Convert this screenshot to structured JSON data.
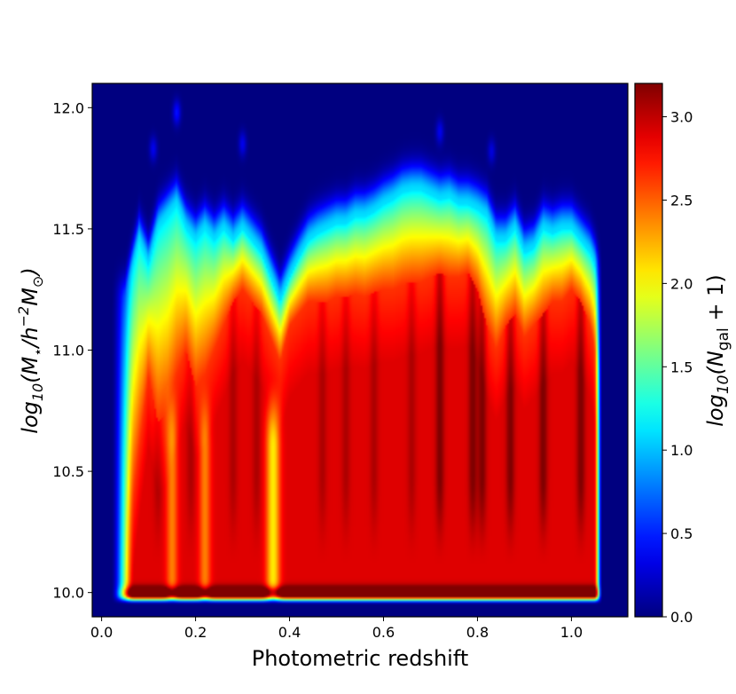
{
  "chart_data": {
    "type": "heatmap",
    "xlabel": "Photometric redshift",
    "ylabel": {
      "prefix": "log",
      "sub": "10",
      "body": "(M",
      "star": "⋆",
      "mid": "/h",
      "exp": "−2",
      "m": "M",
      "sun": "⊙",
      "close": ")"
    },
    "colorbar_label": {
      "prefix": "log",
      "sub": "10",
      "open": "(N",
      "sub2": "gal",
      "tail": " + 1)"
    },
    "xlim": [
      -0.02,
      1.12
    ],
    "ylim": [
      9.9,
      12.1
    ],
    "clim": [
      0.0,
      3.2
    ],
    "xticks": [
      "0.0",
      "0.2",
      "0.4",
      "0.6",
      "0.8",
      "1.0"
    ],
    "yticks": [
      "10.0",
      "10.5",
      "11.0",
      "11.5",
      "12.0"
    ],
    "cticks": [
      "0.0",
      "0.5",
      "1.0",
      "1.5",
      "2.0",
      "2.5",
      "3.0"
    ],
    "colormap": "jet",
    "support": {
      "z_min": 0.04,
      "z_max": 1.06,
      "mass_floor": 9.98
    },
    "upper_envelope": {
      "z": [
        0.05,
        0.08,
        0.1,
        0.12,
        0.14,
        0.16,
        0.18,
        0.2,
        0.22,
        0.24,
        0.26,
        0.28,
        0.3,
        0.32,
        0.34,
        0.36,
        0.38,
        0.4,
        0.42,
        0.44,
        0.46,
        0.48,
        0.5,
        0.52,
        0.54,
        0.56,
        0.58,
        0.6,
        0.62,
        0.64,
        0.66,
        0.68,
        0.7,
        0.72,
        0.74,
        0.76,
        0.78,
        0.8,
        0.82,
        0.84,
        0.86,
        0.88,
        0.9,
        0.92,
        0.94,
        0.96,
        0.98,
        1.0,
        1.02,
        1.04,
        1.06
      ],
      "log_mass": [
        11.2,
        11.45,
        11.35,
        11.5,
        11.55,
        11.6,
        11.5,
        11.45,
        11.5,
        11.45,
        11.5,
        11.45,
        11.5,
        11.45,
        11.4,
        11.3,
        11.2,
        11.3,
        11.38,
        11.45,
        11.48,
        11.5,
        11.52,
        11.52,
        11.55,
        11.55,
        11.57,
        11.6,
        11.62,
        11.65,
        11.66,
        11.66,
        11.64,
        11.62,
        11.63,
        11.6,
        11.6,
        11.58,
        11.55,
        11.45,
        11.45,
        11.5,
        11.4,
        11.42,
        11.5,
        11.48,
        11.5,
        11.5,
        11.45,
        11.4,
        11.3
      ]
    },
    "high_density_envelope": {
      "z": [
        0.05,
        0.08,
        0.1,
        0.12,
        0.14,
        0.16,
        0.18,
        0.2,
        0.22,
        0.24,
        0.26,
        0.28,
        0.3,
        0.32,
        0.34,
        0.36,
        0.38,
        0.4,
        0.42,
        0.44,
        0.46,
        0.48,
        0.5,
        0.52,
        0.54,
        0.56,
        0.58,
        0.6,
        0.62,
        0.64,
        0.66,
        0.68,
        0.7,
        0.72,
        0.74,
        0.76,
        0.78,
        0.8,
        0.82,
        0.84,
        0.86,
        0.88,
        0.9,
        0.92,
        0.94,
        0.96,
        0.98,
        1.0,
        1.02,
        1.04,
        1.06
      ],
      "log_mass": [
        10.1,
        10.6,
        10.9,
        10.7,
        10.75,
        10.9,
        11.0,
        10.85,
        10.9,
        11.0,
        11.1,
        11.2,
        11.25,
        11.2,
        11.15,
        11.05,
        10.95,
        11.1,
        11.15,
        11.2,
        11.2,
        11.2,
        11.22,
        11.22,
        11.23,
        11.22,
        11.24,
        11.25,
        11.25,
        11.27,
        11.28,
        11.28,
        11.3,
        11.32,
        11.3,
        11.3,
        11.32,
        11.25,
        11.1,
        11.0,
        11.1,
        11.15,
        11.05,
        11.1,
        11.15,
        11.2,
        11.2,
        11.25,
        11.2,
        11.1,
        10.9
      ]
    },
    "upper_blobs": [
      {
        "z": 0.16,
        "log_mass": 11.98,
        "value": 0.45
      },
      {
        "z": 0.11,
        "log_mass": 11.83,
        "value": 0.35
      },
      {
        "z": 0.3,
        "log_mass": 11.85,
        "value": 0.35
      },
      {
        "z": 0.72,
        "log_mass": 11.9,
        "value": 0.35
      },
      {
        "z": 0.83,
        "log_mass": 11.82,
        "value": 0.3
      }
    ],
    "hot_streaks": [
      0.12,
      0.19,
      0.28,
      0.33,
      0.47,
      0.52,
      0.58,
      0.66,
      0.72,
      0.79,
      0.81,
      0.87,
      0.94,
      1.02
    ],
    "cool_streaks": [
      0.15,
      0.22,
      0.37,
      0.36
    ]
  }
}
